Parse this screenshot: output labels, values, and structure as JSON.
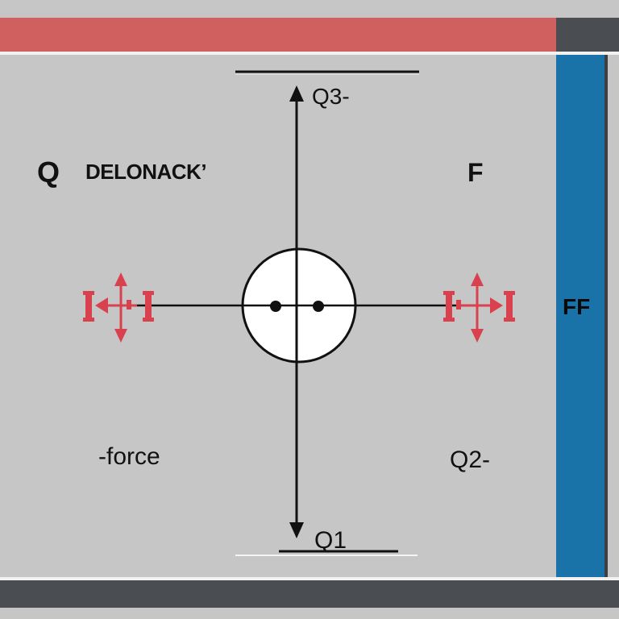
{
  "labels": {
    "q_left": "Q",
    "delonack": "DELONACK’",
    "f_top": "F",
    "q3": "Q3-",
    "ff": "FF",
    "force": "-force",
    "q2": "Q2-",
    "q1": "Q1"
  },
  "colors": {
    "background": "#c6c6c6",
    "top_bar": "#d06060",
    "right_bar": "#1a73a8",
    "dark_bar": "#4a4d52",
    "arrow_red": "#d9414e",
    "axis": "#111111",
    "circle_fill": "#ffffff"
  },
  "icons": {
    "left_force": "force-double-arrow-icon",
    "right_force": "force-double-arrow-icon"
  }
}
